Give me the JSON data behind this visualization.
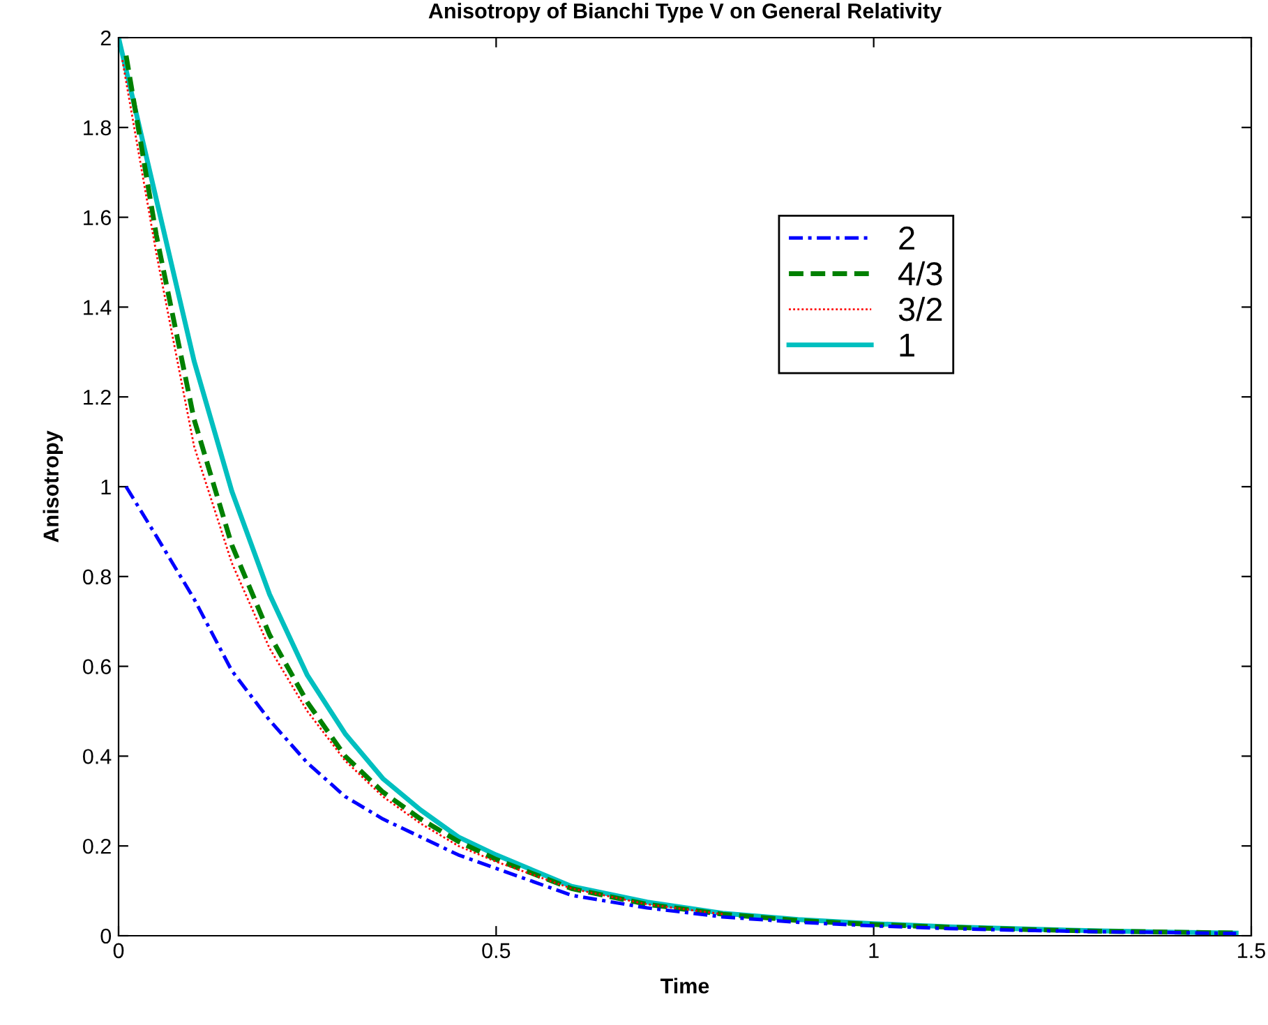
{
  "chart_data": {
    "type": "line",
    "title": "Anisotropy of Bianchi Type V on General Relativity",
    "xlabel": "Time",
    "ylabel": "Anisotropy",
    "xlim": [
      0,
      1.5
    ],
    "xticks": [
      0,
      0.5,
      1,
      1.5
    ],
    "ylim": [
      0,
      2
    ],
    "yticks": [
      0,
      0.2,
      0.4,
      0.6,
      0.8,
      1,
      1.2,
      1.4,
      1.6,
      1.8,
      2
    ],
    "grid": false,
    "legend": "top",
    "marker": "none",
    "series": [
      {
        "name": "2",
        "color": "#0000ff",
        "line_style": "dashdot",
        "x": [
          0.01,
          0.05,
          0.1,
          0.15,
          0.2,
          0.25,
          0.3,
          0.35,
          0.4,
          0.45,
          0.5,
          0.6,
          0.7,
          0.8,
          0.9,
          1.0,
          1.1,
          1.2,
          1.3,
          1.4,
          1.48
        ],
        "values": [
          1.0,
          0.89,
          0.75,
          0.59,
          0.48,
          0.385,
          0.31,
          0.26,
          0.22,
          0.18,
          0.15,
          0.09,
          0.062,
          0.042,
          0.03,
          0.022,
          0.016,
          0.012,
          0.009,
          0.007,
          0.005
        ]
      },
      {
        "name": "4/3",
        "color": "#008000",
        "line_style": "dashed",
        "x": [
          0.01,
          0.05,
          0.1,
          0.15,
          0.2,
          0.25,
          0.3,
          0.35,
          0.4,
          0.45,
          0.5,
          0.6,
          0.7,
          0.8,
          0.9,
          1.0,
          1.1,
          1.2,
          1.3,
          1.4,
          1.48
        ],
        "values": [
          1.96,
          1.56,
          1.15,
          0.87,
          0.67,
          0.52,
          0.4,
          0.32,
          0.26,
          0.21,
          0.17,
          0.105,
          0.07,
          0.048,
          0.034,
          0.025,
          0.019,
          0.014,
          0.01,
          0.008,
          0.006
        ]
      },
      {
        "name": "3/2",
        "color": "#ff0000",
        "line_style": "dotted",
        "x": [
          0.005,
          0.05,
          0.1,
          0.15,
          0.2,
          0.25,
          0.3,
          0.35,
          0.4,
          0.45,
          0.5,
          0.6,
          0.7,
          0.8
        ],
        "values": [
          1.95,
          1.52,
          1.09,
          0.83,
          0.64,
          0.5,
          0.39,
          0.31,
          0.25,
          0.2,
          0.165,
          0.105,
          0.07,
          0.048
        ]
      },
      {
        "name": "1",
        "color": "#00bfbf",
        "line_style": "solid",
        "x": [
          0.0,
          0.05,
          0.1,
          0.15,
          0.2,
          0.25,
          0.3,
          0.35,
          0.4,
          0.45,
          0.5,
          0.6,
          0.7,
          0.8,
          0.9,
          1.0,
          1.1,
          1.2,
          1.3,
          1.4,
          1.48
        ],
        "values": [
          2.0,
          1.64,
          1.28,
          0.99,
          0.76,
          0.58,
          0.45,
          0.35,
          0.28,
          0.22,
          0.18,
          0.11,
          0.075,
          0.05,
          0.036,
          0.027,
          0.02,
          0.015,
          0.011,
          0.008,
          0.006
        ]
      }
    ]
  }
}
